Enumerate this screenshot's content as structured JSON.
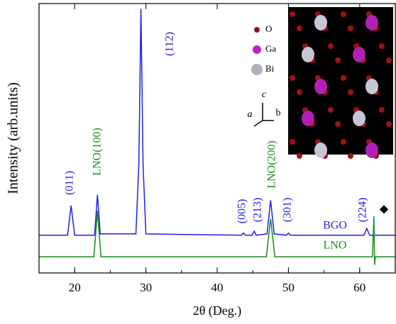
{
  "chart_data": {
    "type": "line",
    "xlabel": "2θ (Deg.)",
    "ylabel": "Intensity (arb.units)",
    "xlim": [
      15,
      65
    ],
    "ylim": [
      0,
      100
    ],
    "xticks": [
      20,
      30,
      40,
      50,
      60
    ],
    "series": [
      {
        "name": "BGO",
        "color": "#1f1fe6",
        "x": [
          15,
          19.0,
          19.5,
          20.0,
          22.8,
          23.2,
          23.6,
          28.6,
          29.0,
          29.3,
          29.6,
          30.0,
          43.4,
          43.7,
          44.0,
          44.9,
          45.2,
          45.5,
          47.0,
          47.5,
          48.0,
          49.7,
          50.0,
          50.3,
          60.6,
          61.0,
          61.4,
          65
        ],
        "y": [
          14,
          14,
          25,
          14,
          14,
          29,
          14.5,
          14.5,
          40,
          98,
          40,
          14.5,
          14,
          14.8,
          14,
          14,
          15.5,
          14,
          14.5,
          27,
          14.5,
          14,
          14.8,
          14,
          14,
          16.5,
          14,
          14
        ]
      },
      {
        "name": "LNO",
        "color": "#1a8a1a",
        "x": [
          15,
          22.7,
          23.2,
          23.7,
          46.9,
          47.5,
          48.1,
          61.8,
          62.0,
          62.1,
          62.2,
          65
        ],
        "y": [
          6,
          6,
          23,
          6,
          6,
          20,
          6,
          6,
          21,
          3,
          6,
          6
        ]
      }
    ],
    "annotations": [
      "(011)",
      "LNO(100)",
      "(112)",
      "(005)",
      "(213)",
      "LNO(200)",
      "(301)",
      "(224)",
      "◆"
    ],
    "inset": {
      "legend": [
        "O",
        "Ga",
        "Bi"
      ],
      "axes": [
        "a",
        "b",
        "c"
      ]
    }
  }
}
